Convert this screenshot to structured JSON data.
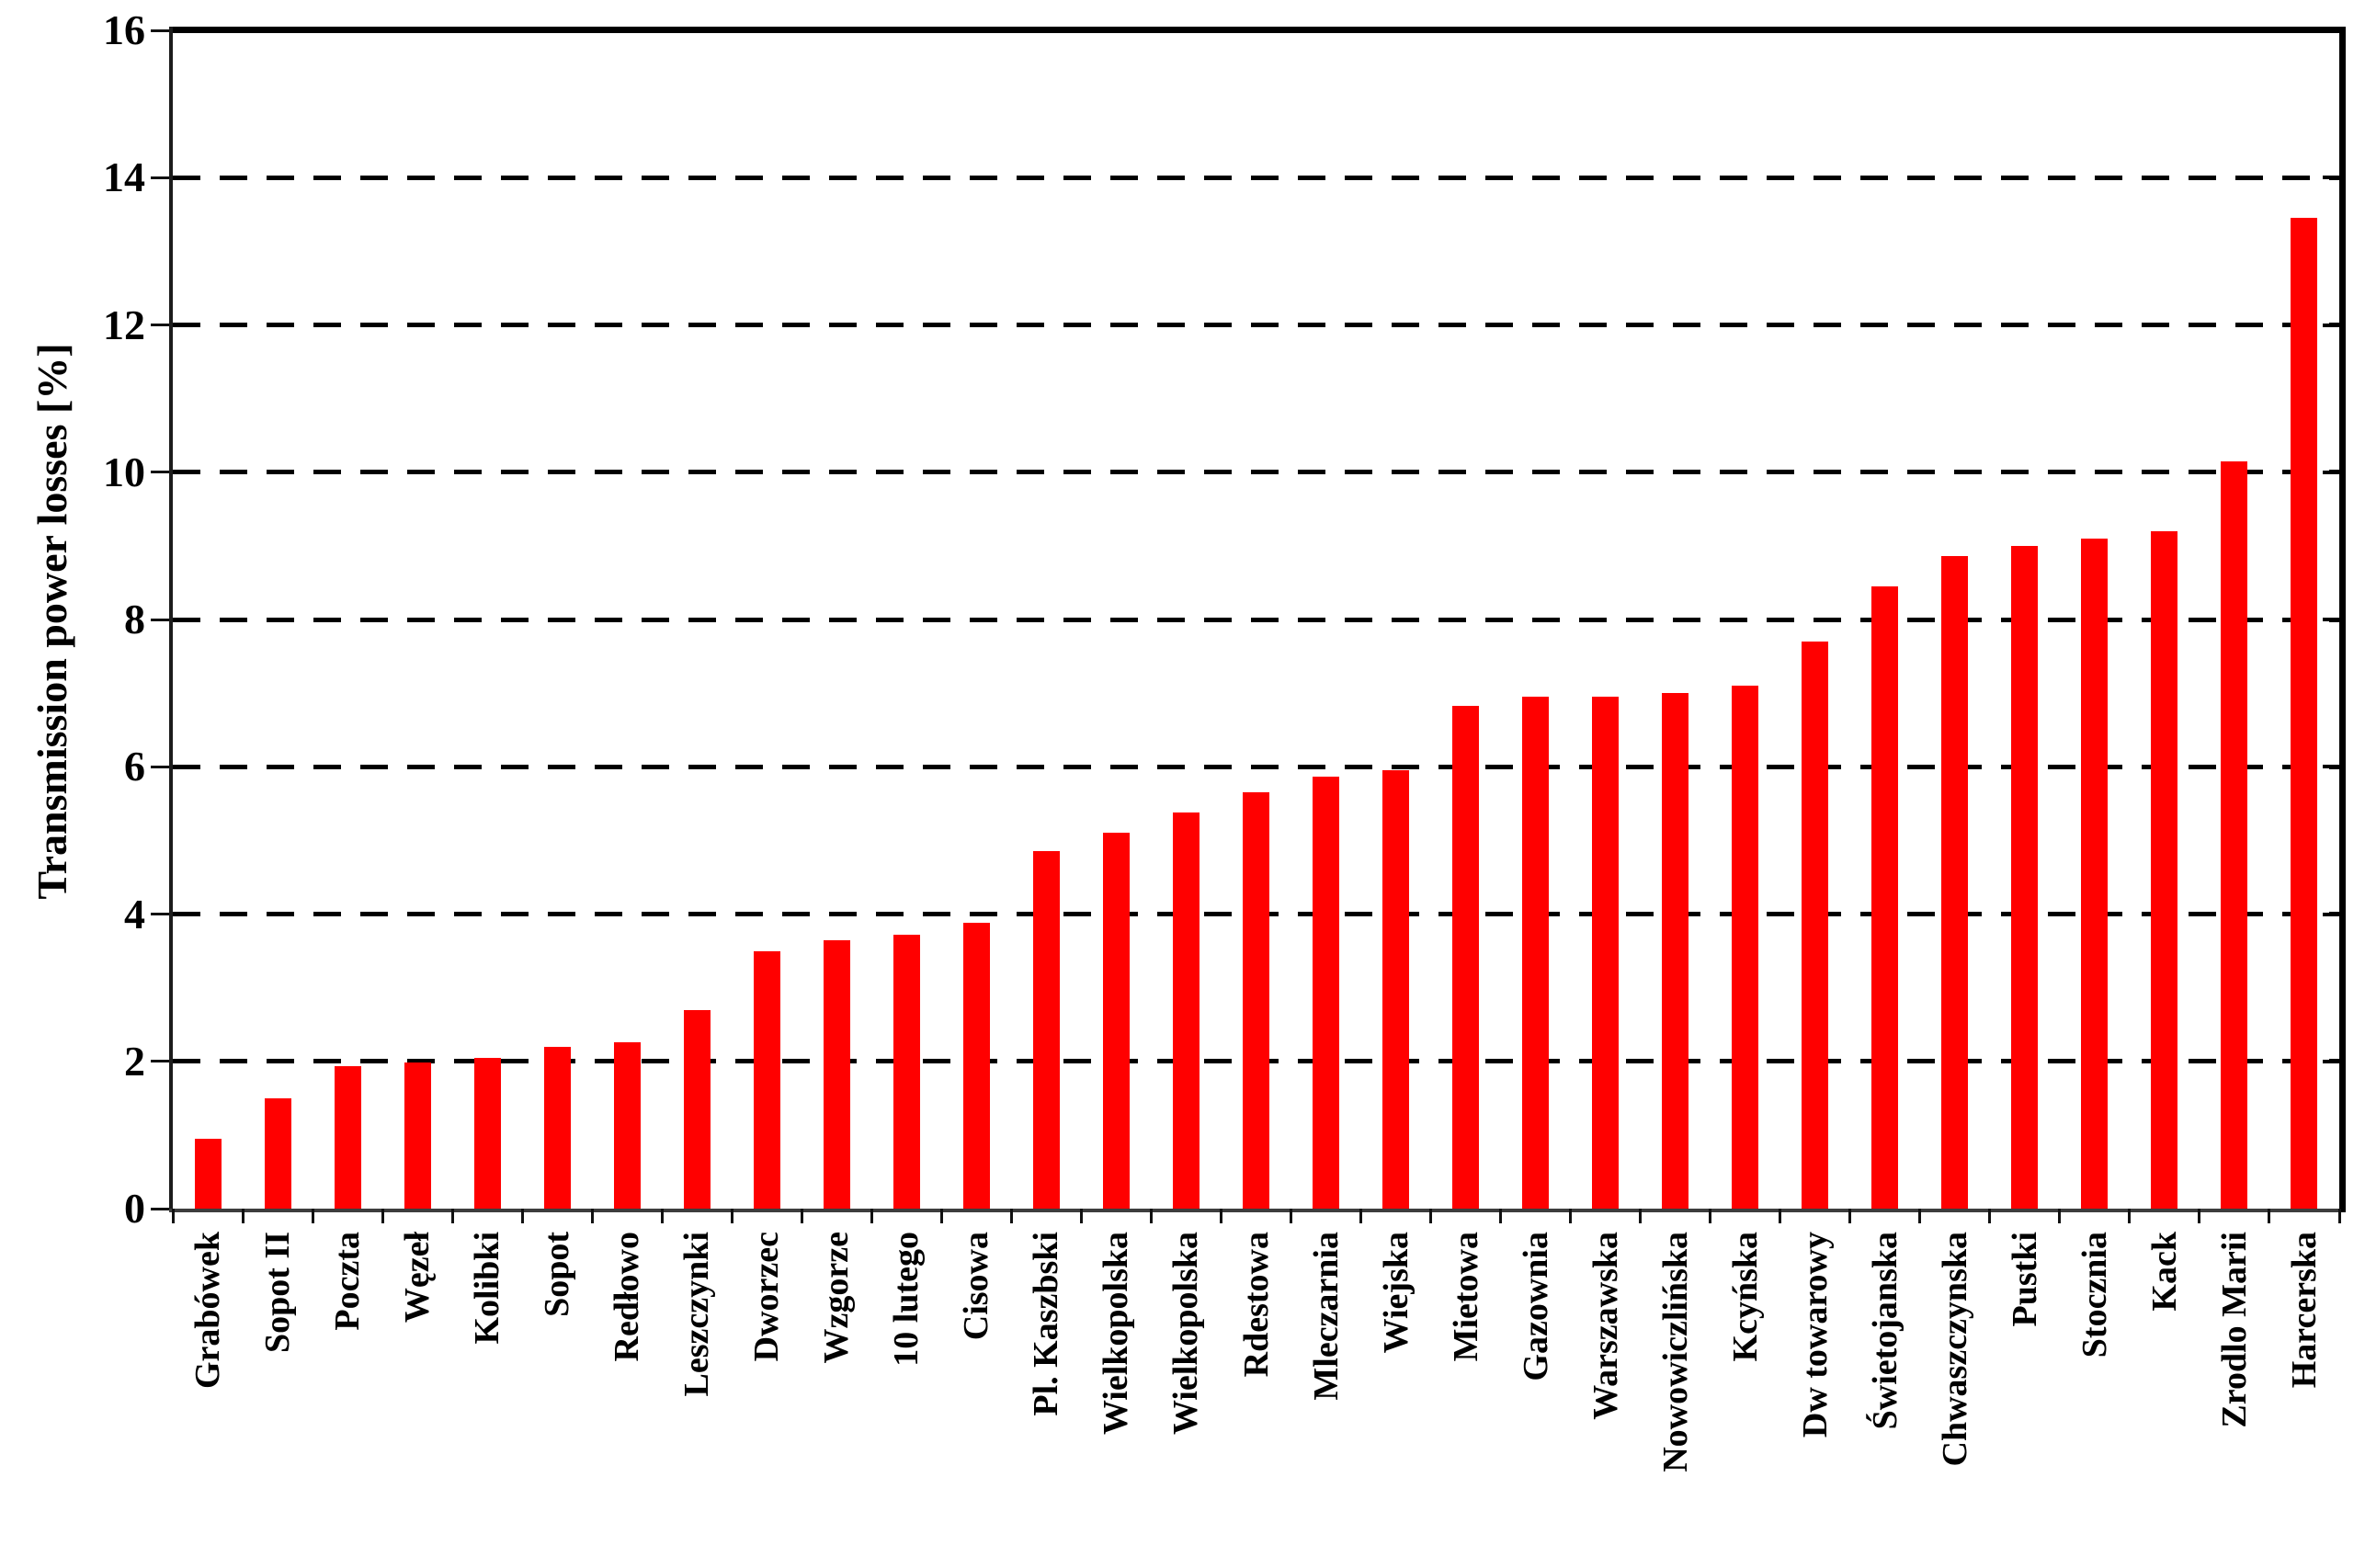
{
  "chart_data": {
    "type": "bar",
    "title": "",
    "xlabel": "",
    "ylabel": "Transmission power losses [%]",
    "ylim": [
      0,
      16
    ],
    "ytick_step": 2,
    "yticks": [
      0,
      2,
      4,
      6,
      8,
      10,
      12,
      14,
      16
    ],
    "gridline_values": [
      2,
      4,
      6,
      8,
      10,
      12,
      14
    ],
    "grid_style": "dashed",
    "legend_position": "none",
    "bar_color": "#FF0000",
    "axis_color": "#000000",
    "text_color": "#000000",
    "categories": [
      "Grabówek",
      "Sopot II",
      "Poczta",
      "Węzeł",
      "Kolibki",
      "Sopot",
      "Redłowo",
      "Leszczynki",
      "Dworzec",
      "Wzgorze",
      "10 lutego",
      "Cisowa",
      "Pl. Kaszbski",
      "Wielkopolska",
      "Wielkopolska",
      "Rdestowa",
      "Mleczarnia",
      "Wiejska",
      "Mietowa",
      "Gazownia",
      "Warszawska",
      "Nowowiczlińska",
      "Kcyńska",
      "Dw towarowy",
      "Świetojanska",
      "Chwaszczynska",
      "Pustki",
      "Stocznia",
      "Kack",
      "Zrodlo Marii",
      "Harcerska"
    ],
    "values": [
      0.95,
      1.5,
      1.93,
      1.98,
      2.05,
      2.2,
      2.26,
      2.7,
      3.5,
      3.65,
      3.72,
      3.88,
      4.85,
      5.1,
      5.38,
      5.65,
      5.86,
      5.95,
      6.83,
      6.95,
      6.95,
      7.0,
      7.1,
      7.7,
      8.45,
      8.86,
      9.0,
      9.1,
      9.2,
      10.15,
      13.45
    ]
  }
}
